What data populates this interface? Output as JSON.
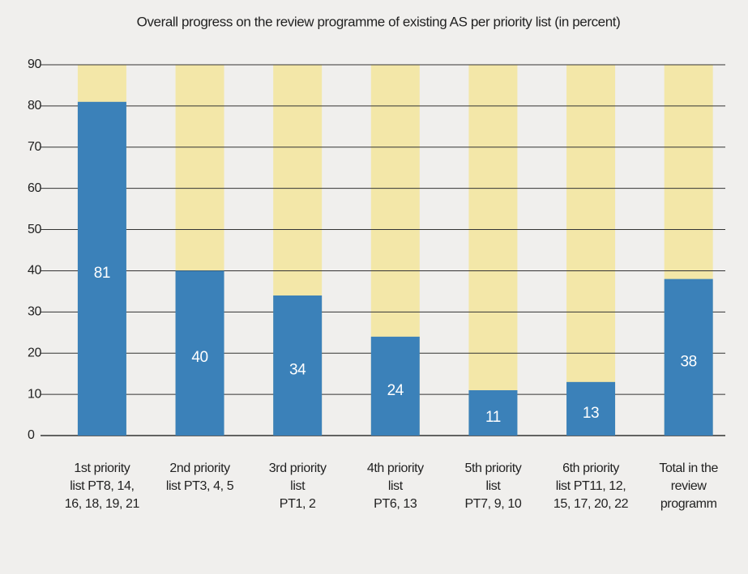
{
  "chart_data": {
    "type": "bar",
    "title": "Overall progress on the review programme of existing AS per priority list (in percent)",
    "categories": [
      [
        "1st priority",
        "list PT8, 14,",
        "16, 18, 19, 21"
      ],
      [
        "2nd priority",
        "list PT3, 4, 5"
      ],
      [
        "3rd priority",
        "list",
        "PT1, 2"
      ],
      [
        "4th priority",
        "list",
        "PT6, 13"
      ],
      [
        "5th priority",
        "list",
        "PT7, 9, 10"
      ],
      [
        "6th priority",
        "list PT11, 12,",
        "15, 17, 20, 22"
      ],
      [
        "Total in the",
        "review",
        "programm"
      ]
    ],
    "values": [
      81,
      40,
      34,
      24,
      11,
      13,
      38
    ],
    "color": "#3b81b9",
    "track_color": "#f3e7a8",
    "ylim": [
      0,
      90
    ],
    "yticks": [
      0,
      10,
      20,
      30,
      40,
      50,
      60,
      70,
      80,
      90
    ],
    "grid": true
  }
}
